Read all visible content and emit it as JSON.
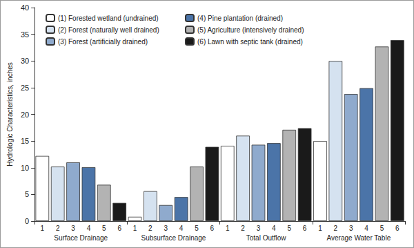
{
  "chart_data": {
    "type": "bar",
    "y_label": "Hydrologic Characteristics, inches",
    "categories": [
      "Surface Drainage",
      "Subsurface Drainage",
      "Total Outflow",
      "Average Water Table"
    ],
    "subcategories": [
      "1",
      "2",
      "3",
      "4",
      "5",
      "6"
    ],
    "series": [
      {
        "name": "(1) Forested wetland (undrained)",
        "color": "#ffffff",
        "values": [
          12.2,
          0.8,
          14.1,
          15.0
        ]
      },
      {
        "name": "(2) Forest (naturally well drained)",
        "color": "#d5e2f0",
        "values": [
          10.2,
          5.6,
          16.0,
          30.0
        ]
      },
      {
        "name": "(3) Forest (artificially drained)",
        "color": "#8faacd",
        "values": [
          11.0,
          3.0,
          14.3,
          23.8
        ]
      },
      {
        "name": "(4) Pine plantation (drained)",
        "color": "#4b74a8",
        "values": [
          10.1,
          4.5,
          14.6,
          24.9
        ]
      },
      {
        "name": "(5) Agriculture (intensively drained)",
        "color": "#b3b3b3",
        "values": [
          6.8,
          10.2,
          17.1,
          32.7
        ]
      },
      {
        "name": "(6) Lawn with septic tank (drained)",
        "color": "#1a1a1a",
        "values": [
          3.4,
          13.9,
          17.4,
          33.9
        ]
      }
    ],
    "ylim": [
      0,
      40
    ],
    "yticks": [
      0,
      5,
      10,
      15,
      20,
      25,
      30,
      35,
      40
    ],
    "grid": false,
    "legend": "upper left"
  }
}
